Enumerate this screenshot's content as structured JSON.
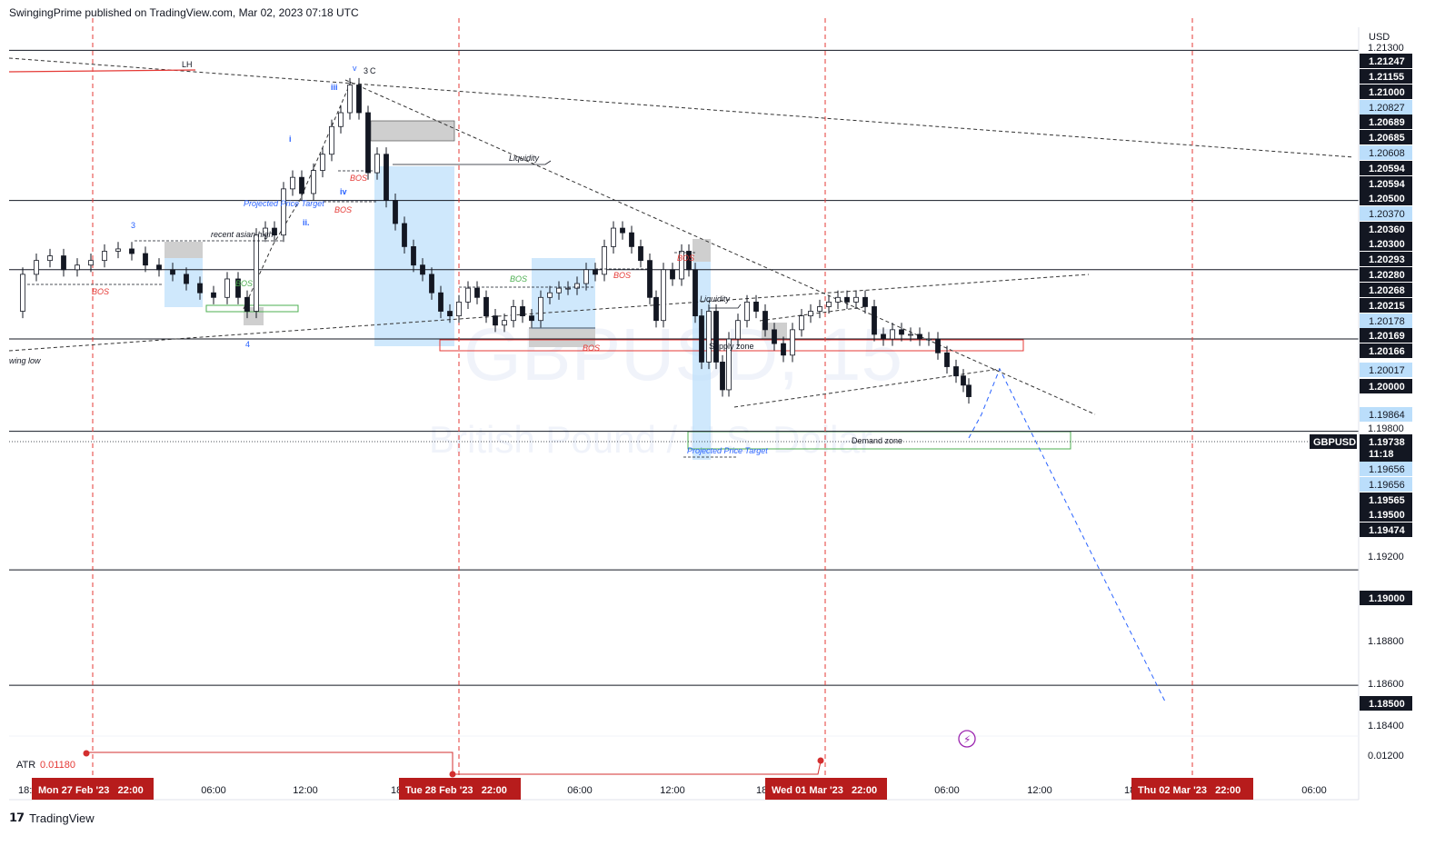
{
  "header": {
    "published": "SwingingPrime published on TradingView.com, Mar 02, 2023 07:18 UTC"
  },
  "footer": {
    "brand": "TradingView"
  },
  "chart_data": {
    "type": "candlestick",
    "symbol": "GBPUSD",
    "watermark_symbol": "GBPUSD, 15",
    "watermark_name": "British Pound / U.S. Dollar",
    "currency": "USD",
    "last_price": "1.19738",
    "countdown": "11:18",
    "ylim": [
      1.183,
      1.2135
    ],
    "x_tick_labels": [
      "18:",
      "06:00",
      "12:00",
      "18:",
      "06:00",
      "12:00",
      "18",
      "06:00",
      "12:00",
      "18:",
      "06:00"
    ],
    "session_labels": [
      "Mon 27 Feb '23   22:00",
      "Tue 28 Feb '23   22:00",
      "Wed 01 Mar '23   22:00",
      "Thu 02 Mar '23   22:00"
    ],
    "price_axis_plain": [
      "1.21300",
      "1.19800",
      "1.19200",
      "1.18800",
      "1.18600",
      "1.18400"
    ],
    "price_axis_dark": [
      "1.21247",
      "1.21155",
      "1.21000",
      "1.20689",
      "1.20685",
      "1.20594",
      "1.20594",
      "1.20500",
      "1.20360",
      "1.20300",
      "1.20293",
      "1.20280",
      "1.20268",
      "1.20215",
      "1.20169",
      "1.20166",
      "1.20000",
      "1.19565",
      "1.19500",
      "1.19474",
      "1.19000",
      "1.18500"
    ],
    "price_axis_blue": [
      "1.20827",
      "1.20608",
      "1.20370",
      "1.20178",
      "1.20017",
      "1.19864",
      "1.19656",
      "1.19656"
    ],
    "horizontal_levels": [
      1.2125,
      1.206,
      1.203,
      1.2,
      1.196,
      1.19,
      1.185
    ],
    "indicator": {
      "name": "ATR",
      "value": "0.01180",
      "axis_label": "0.01200"
    },
    "annotations": [
      "LH",
      "v",
      "3",
      "C",
      "iii",
      "i",
      "iv",
      "ii.",
      "3",
      "4",
      "wing low",
      "recent asian high",
      "Projected Price Target",
      "BOS",
      "Liquidity",
      "Supply zone",
      "Demand zone",
      "Projected Price Target"
    ],
    "annotation_bos": "BOS",
    "colors": {
      "bullish": "#131722",
      "bearish": "#131722",
      "session_line": "#e53935",
      "demand": "#4caf50",
      "supply": "#e53935",
      "zone_blue": "#bbdefb",
      "projection": "#2962ff"
    }
  }
}
